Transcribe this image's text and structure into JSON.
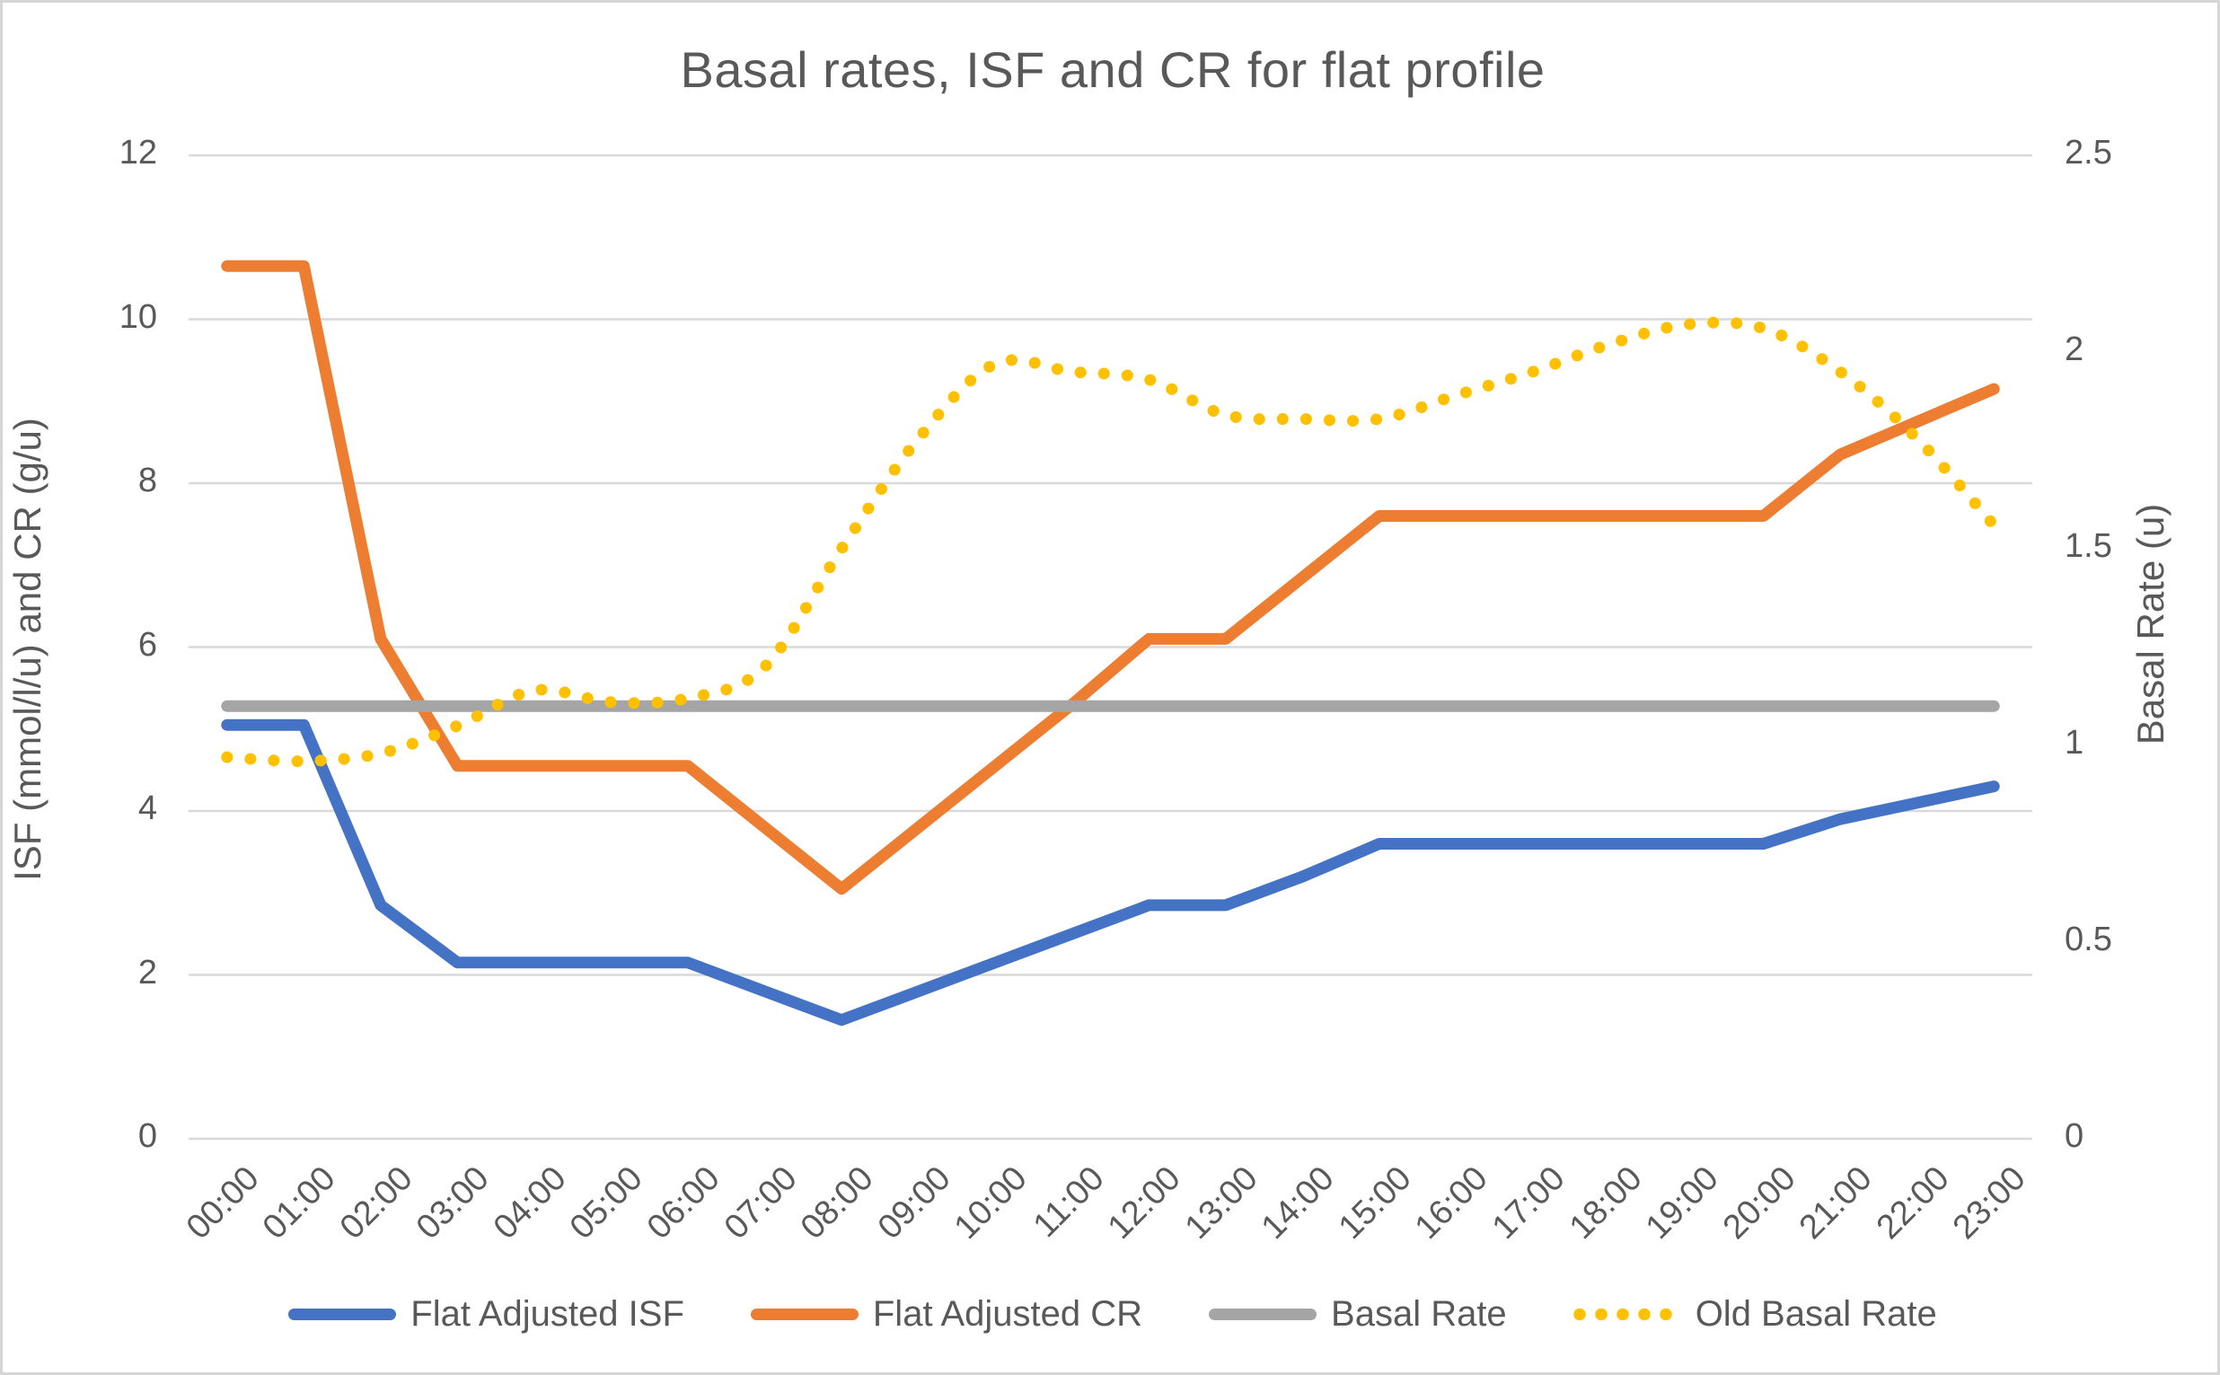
{
  "chart_data": {
    "type": "line",
    "title": "Basal rates, ISF and CR for flat profile",
    "categories": [
      "00:00",
      "01:00",
      "02:00",
      "03:00",
      "04:00",
      "05:00",
      "06:00",
      "07:00",
      "08:00",
      "09:00",
      "10:00",
      "11:00",
      "12:00",
      "13:00",
      "14:00",
      "15:00",
      "16:00",
      "17:00",
      "18:00",
      "19:00",
      "20:00",
      "21:00",
      "22:00",
      "23:00"
    ],
    "left_axis": {
      "title": "ISF (mmol/l/u) and CR (g/u)",
      "min": 0,
      "max": 12,
      "ticks": [
        "0",
        "2",
        "4",
        "6",
        "8",
        "10",
        "12"
      ],
      "tick_values": [
        0,
        2,
        4,
        6,
        8,
        10,
        12
      ]
    },
    "right_axis": {
      "title": "Basal Rate (u)",
      "min": 0,
      "max": 2.5,
      "ticks": [
        "0",
        "0.5",
        "1",
        "1.5",
        "2",
        "2.5"
      ],
      "tick_values": [
        0,
        0.5,
        1,
        1.5,
        2,
        2.5
      ]
    },
    "grid": true,
    "legend_position": "bottom",
    "series": [
      {
        "name": "Flat Adjusted ISF",
        "axis": "left",
        "color": "#4472C4",
        "style": "solid",
        "smooth": false,
        "values": [
          5.05,
          5.05,
          2.85,
          2.15,
          2.15,
          2.15,
          2.15,
          1.8,
          1.45,
          1.8,
          2.15,
          2.5,
          2.85,
          2.85,
          3.2,
          3.6,
          3.6,
          3.6,
          3.6,
          3.6,
          3.6,
          3.9,
          4.1,
          4.3
        ]
      },
      {
        "name": "Flat Adjusted CR",
        "axis": "left",
        "color": "#ED7D31",
        "style": "solid",
        "smooth": false,
        "values": [
          10.65,
          10.65,
          6.1,
          4.55,
          4.55,
          4.55,
          4.55,
          3.8,
          3.05,
          3.8,
          4.55,
          5.3,
          6.1,
          6.1,
          6.85,
          7.6,
          7.6,
          7.6,
          7.6,
          7.6,
          7.6,
          8.35,
          8.75,
          9.15
        ]
      },
      {
        "name": "Basal Rate",
        "axis": "right",
        "color": "#A5A5A5",
        "style": "solid",
        "smooth": false,
        "values": [
          1.1,
          1.1,
          1.1,
          1.1,
          1.1,
          1.1,
          1.1,
          1.1,
          1.1,
          1.1,
          1.1,
          1.1,
          1.1,
          1.1,
          1.1,
          1.1,
          1.1,
          1.1,
          1.1,
          1.1,
          1.1,
          1.1,
          1.1,
          1.1
        ]
      },
      {
        "name": "Old Basal Rate",
        "axis": "right",
        "color": "#FFC000",
        "style": "dotted",
        "smooth": true,
        "values": [
          0.97,
          0.96,
          0.98,
          1.05,
          1.14,
          1.11,
          1.12,
          1.2,
          1.5,
          1.78,
          1.97,
          1.95,
          1.93,
          1.84,
          1.83,
          1.83,
          1.89,
          1.95,
          2.02,
          2.07,
          2.06,
          1.95,
          1.78,
          1.56
        ]
      }
    ],
    "colors": {
      "text": "#595959",
      "gridline": "#D9D9D9",
      "background": "#FFFFFF",
      "frame_border": "#D6D6D6"
    }
  }
}
